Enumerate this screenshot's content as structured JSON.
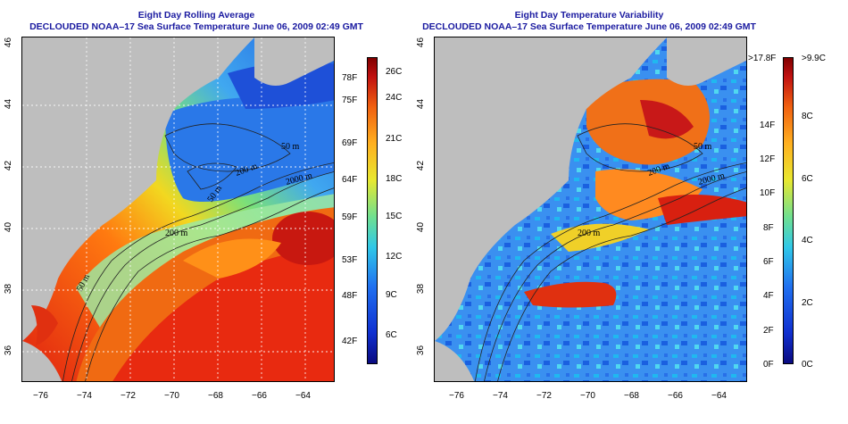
{
  "left_panel": {
    "title": "Eight Day Rolling Average",
    "subtitle": "DECLOUDED NOAA–17 Sea Surface Temperature June 06, 2009 02:49 GMT",
    "colorbar_celsius": [
      "26C",
      "24C",
      "21C",
      "18C",
      "15C",
      "12C",
      "9C",
      "6C"
    ],
    "colorbar_fahrenheit": [
      "78F",
      "75F",
      "69F",
      "64F",
      "59F",
      "53F",
      "48F",
      "42F"
    ],
    "contour_labels": [
      "50 m",
      "200 m",
      "2000 m",
      "200 m",
      "50 m",
      "50 m"
    ]
  },
  "right_panel": {
    "title": "Eight Day Temperature Variability",
    "subtitle": "DECLOUDED NOAA–17 Sea Surface Temperature June 06, 2009 02:49 GMT",
    "colorbar_celsius": [
      ">9.9C",
      "8C",
      "6C",
      "4C",
      "2C",
      "0C"
    ],
    "colorbar_fahrenheit": [
      ">17.8F",
      "14F",
      "12F",
      "10F",
      "8F",
      "6F",
      "4F",
      "2F",
      "0F"
    ],
    "contour_labels": [
      "200 m",
      "2000 m",
      "200 m",
      "50 m"
    ]
  },
  "axes": {
    "longitude_ticks": [
      "−76",
      "−74",
      "−72",
      "−70",
      "−68",
      "−66",
      "−64"
    ],
    "latitude_ticks": [
      "36",
      "38",
      "40",
      "42",
      "44",
      "46"
    ]
  },
  "colors": {
    "land": "#bebebe",
    "title": "#1a1aa0",
    "grid": "#ffffff",
    "contour": "#222222"
  }
}
